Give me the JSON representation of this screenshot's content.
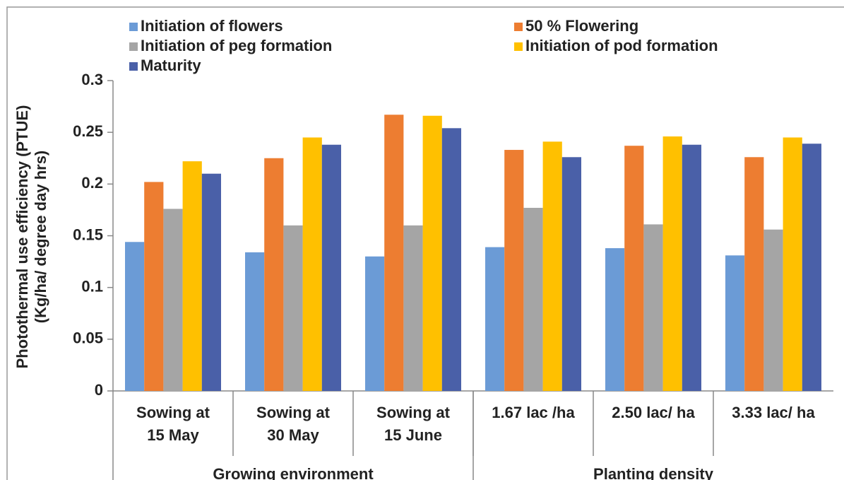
{
  "chart_data": {
    "type": "bar",
    "y_label": [
      "Photothermal use efficiency (PTUE)",
      "(Kg/ha/ degree day hrs)"
    ],
    "categories": [
      [
        "Sowing at",
        "15 May"
      ],
      [
        "Sowing at",
        "30 May"
      ],
      [
        "Sowing at",
        "15 June"
      ],
      [
        "1.67 lac /ha"
      ],
      [
        "2.50 lac/ ha"
      ],
      [
        "3.33 lac/ ha"
      ]
    ],
    "groups": [
      {
        "name": "Growing environment",
        "count": 3
      },
      {
        "name": "Planting density",
        "count": 3
      }
    ],
    "series": [
      {
        "name": "Initiation of flowers",
        "color": "#6b9bd6",
        "values": [
          0.144,
          0.134,
          0.13,
          0.139,
          0.138,
          0.131
        ]
      },
      {
        "name": "50 %  Flowering",
        "color": "#ed7d31",
        "values": [
          0.202,
          0.225,
          0.267,
          0.233,
          0.237,
          0.226
        ]
      },
      {
        "name": "Initiation of peg formation",
        "color": "#a5a5a5",
        "values": [
          0.176,
          0.16,
          0.16,
          0.177,
          0.161,
          0.156
        ]
      },
      {
        "name": "Initiation of pod formation",
        "color": "#ffc000",
        "values": [
          0.222,
          0.245,
          0.266,
          0.241,
          0.246,
          0.245
        ]
      },
      {
        "name": "Maturity",
        "color": "#4a60a8",
        "values": [
          0.21,
          0.238,
          0.254,
          0.226,
          0.238,
          0.239
        ]
      }
    ],
    "ylim": [
      0,
      0.3
    ],
    "yticks": [
      0,
      0.05,
      0.1,
      0.15,
      0.2,
      0.25,
      0.3
    ],
    "legend": "top"
  }
}
